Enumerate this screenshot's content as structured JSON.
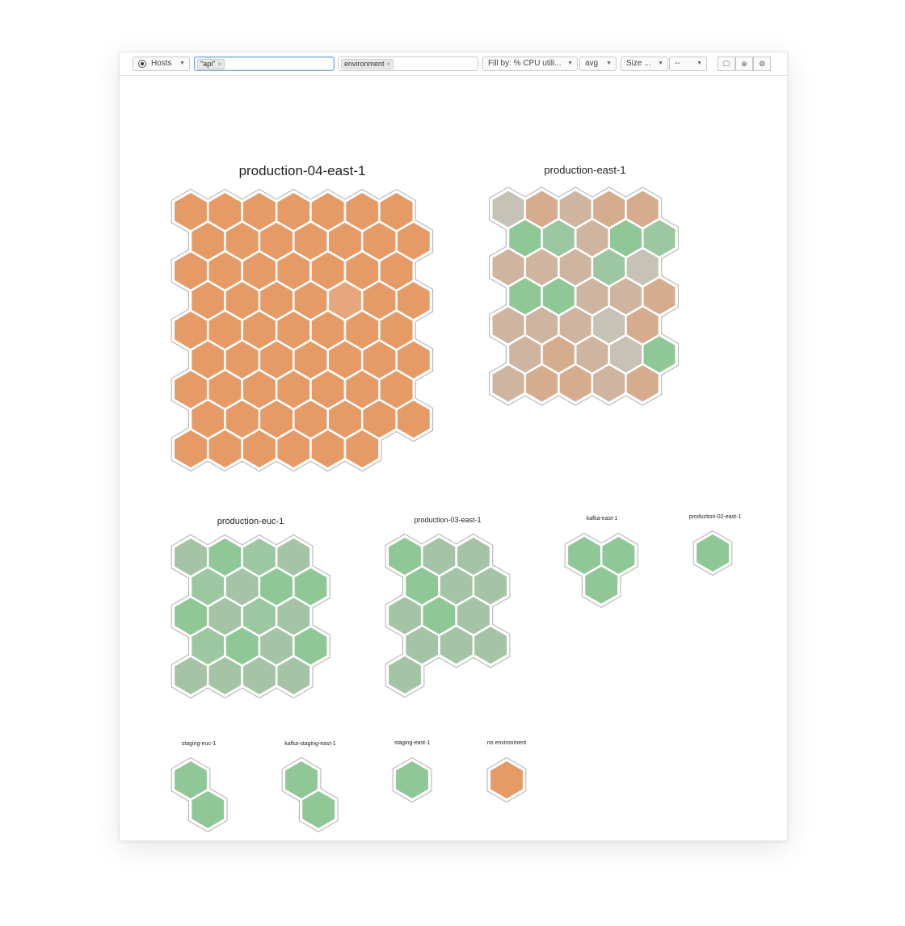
{
  "toolbar": {
    "scope_label": "Hosts",
    "filter_tag": "\"api\"",
    "group_tag": "environment",
    "fill_label": "Fill by: % CPU utili...",
    "aggregation_label": "avg",
    "size_label": "Size ...",
    "size_value": "--",
    "buttons": [
      {
        "name": "tv-mode-button",
        "icon": "monitor-icon",
        "glyph": "🖵"
      },
      {
        "name": "download-button",
        "icon": "download-icon",
        "glyph": "⊕"
      },
      {
        "name": "settings-button",
        "icon": "gear-icon",
        "glyph": "⚙"
      }
    ]
  },
  "colors": {
    "hot": "#e69a66",
    "hot_light": "#e7a77c",
    "warm": "#d6ac8e",
    "warm2": "#cfb4a0",
    "neutral": "#c7c2b6",
    "green": "#8fc797",
    "green2": "#9cc7a1",
    "green3": "#a5c4a6",
    "outline": "#b8b8b8"
  },
  "groups": [
    {
      "name": "production-04-east-1",
      "rows": [
        [
          "hot",
          "hot",
          "hot",
          "hot",
          "hot",
          "hot",
          "hot"
        ],
        [
          "hot",
          "hot",
          "hot",
          "hot",
          "hot",
          "hot",
          "hot"
        ],
        [
          "hot",
          "hot",
          "hot",
          "hot",
          "hot",
          "hot",
          "hot"
        ],
        [
          "hot",
          "hot",
          "hot",
          "hot",
          "hot_light",
          "hot",
          "hot"
        ],
        [
          "hot",
          "hot",
          "hot",
          "hot",
          "hot",
          "hot",
          "hot"
        ],
        [
          "hot",
          "hot",
          "hot",
          "hot",
          "hot",
          "hot",
          "hot"
        ],
        [
          "hot",
          "hot",
          "hot",
          "hot",
          "hot",
          "hot",
          "hot"
        ],
        [
          "hot",
          "hot",
          "hot",
          "hot",
          "hot",
          "hot",
          "hot"
        ],
        [
          "hot",
          "hot",
          "hot",
          "hot",
          "hot",
          "hot"
        ]
      ]
    },
    {
      "name": "production-east-1",
      "rows": [
        [
          "neutral",
          "warm",
          "warm2",
          "warm",
          "warm"
        ],
        [
          "green",
          "green2",
          "warm2",
          "green",
          "green2"
        ],
        [
          "warm2",
          "warm2",
          "warm2",
          "green2",
          "neutral"
        ],
        [
          "green",
          "green",
          "warm2",
          "warm2",
          "warm"
        ],
        [
          "warm2",
          "warm2",
          "warm2",
          "neutral",
          "warm"
        ],
        [
          "warm2",
          "warm",
          "warm2",
          "neutral",
          "green"
        ],
        [
          "warm2",
          "warm",
          "warm",
          "warm2",
          "warm"
        ]
      ]
    },
    {
      "name": "production-euc-1",
      "rows": [
        [
          "green3",
          "green",
          "green2",
          "green3"
        ],
        [
          "green2",
          "green3",
          "green",
          "green"
        ],
        [
          "green",
          "green3",
          "green2",
          "green3"
        ],
        [
          "green2",
          "green",
          "green3",
          "green"
        ],
        [
          "green3",
          "green3",
          "green3",
          "green3"
        ]
      ]
    },
    {
      "name": "production-03-east-1",
      "rows": [
        [
          "green",
          "green3",
          "green3"
        ],
        [
          "green",
          "green3",
          "green3"
        ],
        [
          "green3",
          "green",
          "green3"
        ],
        [
          "green3",
          "green3",
          "green3"
        ],
        [
          "green3"
        ]
      ]
    },
    {
      "name": "kafka-east-1",
      "rows": [
        [
          "green",
          "green"
        ],
        [
          "green"
        ]
      ]
    },
    {
      "name": "production-02-east-1",
      "rows": [
        [
          "green"
        ]
      ]
    },
    {
      "name": "staging-euc-1",
      "rows": [
        [
          "green"
        ],
        [
          "green"
        ]
      ]
    },
    {
      "name": "kafka-staging-east-1",
      "rows": [
        [
          "green"
        ],
        [
          "green"
        ]
      ]
    },
    {
      "name": "staging-east-1",
      "rows": [
        [
          "green"
        ]
      ]
    },
    {
      "name": "no environment",
      "rows": [
        [
          "hot"
        ]
      ]
    }
  ]
}
